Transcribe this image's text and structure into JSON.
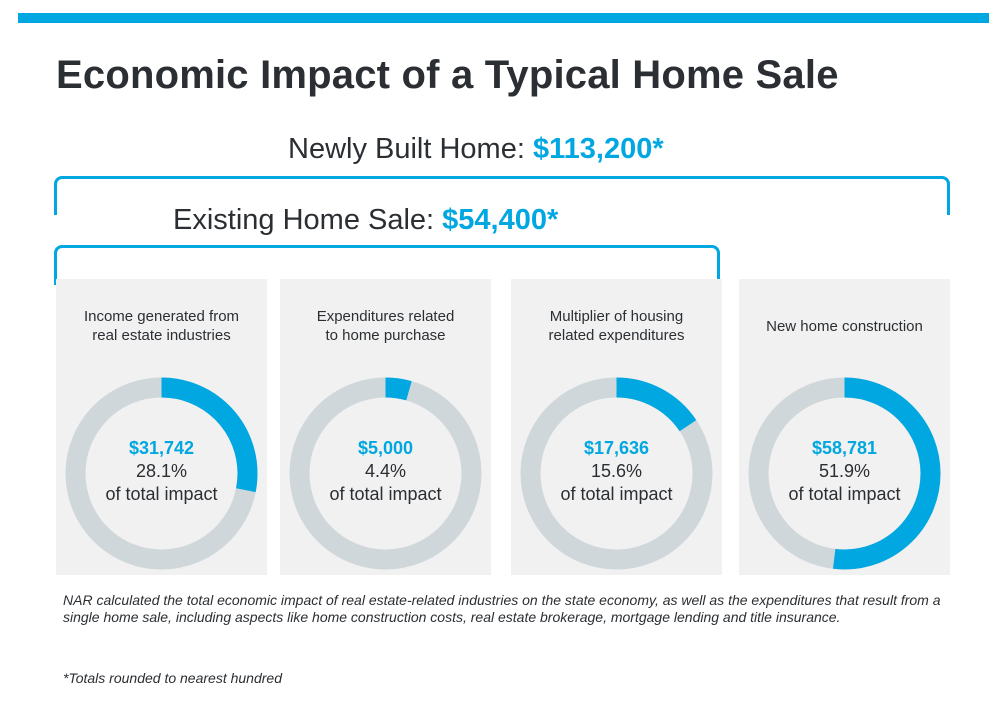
{
  "title": "Economic Impact of a Typical Home Sale",
  "accent_color": "#00a7e1",
  "ring_color": "#cfd7da",
  "newly_built": {
    "label": "Newly Built Home: ",
    "amount": "$113,200*"
  },
  "existing_sale": {
    "label": "Existing Home Sale: ",
    "amount": "$54,400*"
  },
  "chart_data": {
    "type": "pie",
    "style": "donut",
    "series": [
      {
        "label_lines": [
          "Income generated from",
          "real estate industries"
        ],
        "value": "$31,742",
        "percent_label": "28.1%",
        "percent": 28.1,
        "suffix": "of total impact"
      },
      {
        "label_lines": [
          "Expenditures related",
          "to home purchase"
        ],
        "value": "$5,000",
        "percent_label": "4.4%",
        "percent": 4.4,
        "suffix": "of total impact"
      },
      {
        "label_lines": [
          "Multiplier of housing",
          "related expenditures"
        ],
        "value": "$17,636",
        "percent_label": "15.6%",
        "percent": 15.6,
        "suffix": "of total impact"
      },
      {
        "label_lines": [
          "New home construction"
        ],
        "value": "$58,781",
        "percent_label": "51.9%",
        "percent": 51.9,
        "suffix": "of total impact"
      }
    ]
  },
  "footnote": "NAR calculated the total economic impact of real estate-related industries on the state economy, as well as the expenditures that result from a single home sale, including aspects like home construction costs, real estate brokerage, mortgage lending and title insurance.",
  "footnote_2": "*Totals rounded to nearest hundred"
}
